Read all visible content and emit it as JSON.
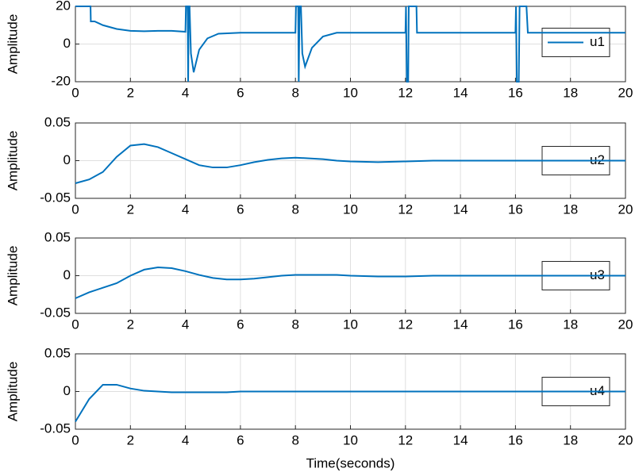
{
  "chart_data": [
    {
      "type": "line",
      "ylabel": "Amplitude",
      "x": [
        0,
        0.55,
        0.56,
        0.7,
        1,
        1.5,
        2,
        2.5,
        3,
        3.5,
        4,
        4.02,
        4.08,
        4.1,
        4.12,
        4.15,
        4.2,
        4.3,
        4.5,
        4.8,
        5.2,
        6,
        8,
        8.02,
        8.1,
        8.12,
        8.15,
        8.2,
        8.25,
        8.35,
        8.6,
        9,
        9.5,
        12,
        12.02,
        12.05,
        12.1,
        12.12,
        12.4,
        12.42,
        16,
        16.02,
        16.05,
        16.12,
        16.15,
        16.4,
        16.45,
        20
      ],
      "series": [
        {
          "name": "u1",
          "color": "#0072bd",
          "values": [
            20,
            20,
            12,
            12,
            10,
            8,
            7,
            6.8,
            7,
            7,
            6.5,
            20,
            20,
            -20,
            20,
            20,
            -5,
            -15,
            -3,
            3,
            5.5,
            6,
            6,
            20,
            20,
            -20,
            20,
            20,
            -5,
            -12,
            -2,
            4,
            6,
            6,
            20,
            -20,
            -20,
            20,
            20,
            6,
            6,
            20,
            -20,
            -20,
            20,
            20,
            6,
            6
          ]
        }
      ],
      "xlim": [
        0,
        20
      ],
      "xticks": [
        0,
        2,
        4,
        6,
        8,
        10,
        12,
        14,
        16,
        18,
        20
      ],
      "ylim": [
        -20,
        20
      ],
      "yticks": [
        -20,
        0,
        20
      ],
      "grid": true,
      "legend": "right"
    },
    {
      "type": "line",
      "ylabel": "Amplitude",
      "x": [
        0,
        0.5,
        1,
        1.5,
        2,
        2.5,
        3,
        3.5,
        4,
        4.5,
        5,
        5.5,
        6,
        6.5,
        7,
        7.5,
        8,
        8.5,
        9,
        9.5,
        10,
        11,
        12,
        13,
        14,
        16,
        18,
        20
      ],
      "series": [
        {
          "name": "u2",
          "color": "#0072bd",
          "values": [
            -0.03,
            -0.025,
            -0.015,
            0.005,
            0.02,
            0.022,
            0.018,
            0.01,
            0.002,
            -0.006,
            -0.009,
            -0.009,
            -0.006,
            -0.002,
            0.001,
            0.003,
            0.004,
            0.003,
            0.002,
            0,
            -0.001,
            -0.002,
            -0.001,
            0,
            0,
            0,
            0,
            0
          ]
        }
      ],
      "xlim": [
        0,
        20
      ],
      "xticks": [
        0,
        2,
        4,
        6,
        8,
        10,
        12,
        14,
        16,
        18,
        20
      ],
      "ylim": [
        -0.05,
        0.05
      ],
      "yticks": [
        -0.05,
        0,
        0.05
      ],
      "grid": true,
      "legend": "right"
    },
    {
      "type": "line",
      "ylabel": "Amplitude",
      "x": [
        0,
        0.5,
        1,
        1.5,
        2,
        2.5,
        3,
        3.5,
        4,
        4.5,
        5,
        5.5,
        6,
        6.5,
        7,
        7.5,
        8,
        8.5,
        9,
        9.5,
        10,
        11,
        12,
        13,
        14,
        16,
        18,
        20
      ],
      "series": [
        {
          "name": "u3",
          "color": "#0072bd",
          "values": [
            -0.03,
            -0.022,
            -0.016,
            -0.01,
            0,
            0.008,
            0.011,
            0.01,
            0.006,
            0.001,
            -0.003,
            -0.005,
            -0.005,
            -0.004,
            -0.002,
            0,
            0.001,
            0.001,
            0.001,
            0.001,
            0,
            -0.001,
            -0.001,
            0,
            0,
            0,
            0,
            0
          ]
        }
      ],
      "xlim": [
        0,
        20
      ],
      "xticks": [
        0,
        2,
        4,
        6,
        8,
        10,
        12,
        14,
        16,
        18,
        20
      ],
      "ylim": [
        -0.05,
        0.05
      ],
      "yticks": [
        -0.05,
        0,
        0.05
      ],
      "grid": true,
      "legend": "right"
    },
    {
      "type": "line",
      "ylabel": "Amplitude",
      "xlabel": "Time(seconds)",
      "x": [
        0,
        0.5,
        1,
        1.5,
        2,
        2.5,
        3,
        3.5,
        4,
        4.5,
        5,
        5.5,
        6,
        6.5,
        7,
        7.5,
        8,
        8.5,
        9,
        9.5,
        10,
        11,
        12,
        13,
        14,
        16,
        18,
        20
      ],
      "series": [
        {
          "name": "u4",
          "color": "#0072bd",
          "values": [
            -0.04,
            -0.01,
            0.009,
            0.009,
            0.004,
            0.001,
            0,
            -0.001,
            -0.001,
            -0.001,
            -0.001,
            -0.001,
            0,
            0,
            0,
            0,
            0,
            0,
            0,
            0,
            0,
            0,
            0,
            0,
            0,
            0,
            0,
            0
          ]
        }
      ],
      "xlim": [
        0,
        20
      ],
      "xticks": [
        0,
        2,
        4,
        6,
        8,
        10,
        12,
        14,
        16,
        18,
        20
      ],
      "ylim": [
        -0.05,
        0.05
      ],
      "yticks": [
        -0.05,
        0,
        0.05
      ],
      "grid": true,
      "legend": "right"
    }
  ]
}
